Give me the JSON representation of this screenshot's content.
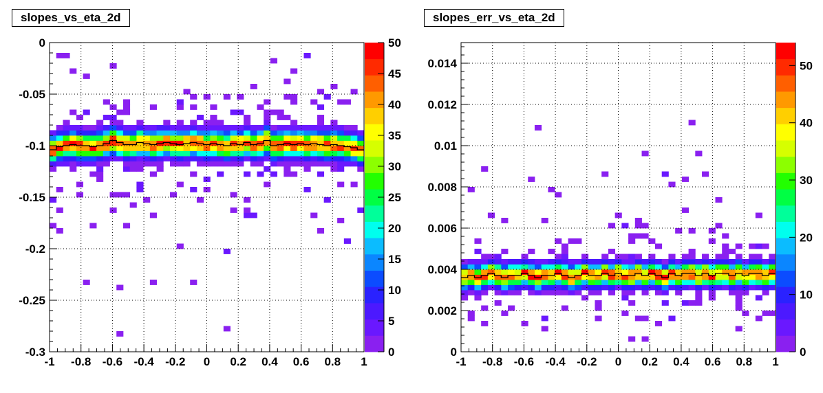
{
  "chart_data": [
    {
      "type": "heatmap",
      "title": "slopes_vs_eta_2d",
      "xlabel": "",
      "ylabel": "",
      "xlim": [
        -1,
        1
      ],
      "ylim": [
        -0.3,
        0
      ],
      "x_ticks": [
        "-1",
        "-0.8",
        "-0.6",
        "-0.4",
        "-0.2",
        "0",
        "0.2",
        "0.4",
        "0.6",
        "0.8",
        "1"
      ],
      "y_ticks": [
        "-0.3",
        "-0.25",
        "-0.2",
        "-0.15",
        "-0.1",
        "-0.05",
        "0"
      ],
      "x_tick_values": [
        -1,
        -0.8,
        -0.6,
        -0.4,
        -0.2,
        0,
        0.2,
        0.4,
        0.6,
        0.8,
        1
      ],
      "y_tick_values": [
        -0.3,
        -0.25,
        -0.2,
        -0.15,
        -0.1,
        -0.05,
        0
      ],
      "grid": true,
      "colorbar": {
        "zlim": [
          0,
          50
        ],
        "ticks": [
          "0",
          "5",
          "10",
          "15",
          "20",
          "25",
          "30",
          "35",
          "40",
          "45",
          "50"
        ],
        "tick_values": [
          0,
          5,
          10,
          15,
          20,
          25,
          30,
          35,
          40,
          45,
          50
        ]
      },
      "profile_mean_y": [
        -0.104,
        -0.101,
        -0.1,
        -0.099,
        -0.1,
        -0.1,
        -0.101,
        -0.1,
        -0.098,
        -0.095,
        -0.097,
        -0.099,
        -0.099,
        -0.097,
        -0.098,
        -0.099,
        -0.098,
        -0.097,
        -0.098,
        -0.099,
        -0.098,
        -0.097,
        -0.098,
        -0.099,
        -0.098,
        -0.099,
        -0.1,
        -0.098,
        -0.099,
        -0.097,
        -0.099,
        -0.098,
        -0.095,
        -0.1,
        -0.099,
        -0.098,
        -0.099,
        -0.098,
        -0.099,
        -0.098,
        -0.099,
        -0.1,
        -0.099,
        -0.1,
        -0.101,
        -0.102,
        -0.104
      ]
    },
    {
      "type": "heatmap",
      "title": "slopes_err_vs_eta_2d",
      "xlabel": "",
      "ylabel": "",
      "xlim": [
        -1,
        1
      ],
      "ylim": [
        0,
        0.015
      ],
      "x_ticks": [
        "-1",
        "-0.8",
        "-0.6",
        "-0.4",
        "-0.2",
        "0",
        "0.2",
        "0.4",
        "0.6",
        "0.8",
        "1"
      ],
      "y_ticks": [
        "0",
        "0.002",
        "0.004",
        "0.006",
        "0.008",
        "0.01",
        "0.012",
        "0.014"
      ],
      "x_tick_values": [
        -1,
        -0.8,
        -0.6,
        -0.4,
        -0.2,
        0,
        0.2,
        0.4,
        0.6,
        0.8,
        1
      ],
      "y_tick_values": [
        0,
        0.002,
        0.004,
        0.006,
        0.008,
        0.01,
        0.012,
        0.014
      ],
      "grid": true,
      "colorbar": {
        "zlim": [
          0,
          54
        ],
        "ticks": [
          "0",
          "10",
          "20",
          "30",
          "40",
          "50"
        ],
        "tick_values": [
          0,
          10,
          20,
          30,
          40,
          50
        ]
      },
      "profile_mean_y": [
        0.0036,
        0.0037,
        0.0036,
        0.0037,
        0.0038,
        0.0037,
        0.0036,
        0.0037,
        0.0037,
        0.0038,
        0.0037,
        0.0036,
        0.0037,
        0.0037,
        0.0038,
        0.0037,
        0.0036,
        0.0037,
        0.0038,
        0.0037,
        0.0037,
        0.0038,
        0.0037,
        0.0038,
        0.0037,
        0.0037,
        0.0038,
        0.0037,
        0.0038,
        0.0037,
        0.0036,
        0.0038,
        0.0037,
        0.0038,
        0.0038,
        0.0037,
        0.0038,
        0.0037,
        0.0038,
        0.0038,
        0.0037,
        0.0038,
        0.0037,
        0.0038,
        0.0038,
        0.0037,
        0.0038
      ]
    }
  ]
}
